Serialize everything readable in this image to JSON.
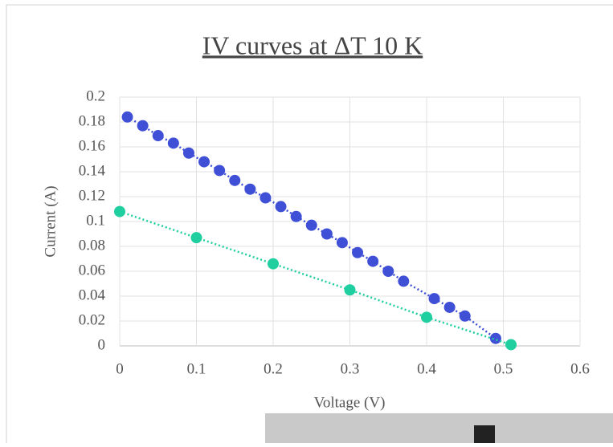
{
  "chart_data": {
    "type": "scatter",
    "title": "IV curves at ΔT 10 K",
    "x_label": "Voltage (V)",
    "y_label": "Current (A)",
    "xlim": [
      0,
      0.6
    ],
    "ylim": [
      0,
      0.2
    ],
    "xticks": [
      0,
      0.1,
      0.2,
      0.3,
      0.4,
      0.5,
      0.6
    ],
    "yticks": [
      0,
      0.02,
      0.04,
      0.06,
      0.08,
      0.1,
      0.12,
      0.14,
      0.16,
      0.18,
      0.2
    ],
    "grid": true,
    "series": [
      {
        "color": "#3f4fd6",
        "x": [
          0.01,
          0.03,
          0.05,
          0.07,
          0.09,
          0.11,
          0.13,
          0.15,
          0.17,
          0.19,
          0.21,
          0.23,
          0.25,
          0.27,
          0.29,
          0.31,
          0.33,
          0.35,
          0.37,
          0.41,
          0.43,
          0.45,
          0.49
        ],
        "values": [
          0.184,
          0.177,
          0.169,
          0.163,
          0.155,
          0.148,
          0.141,
          0.133,
          0.126,
          0.119,
          0.112,
          0.104,
          0.097,
          0.09,
          0.083,
          0.075,
          0.068,
          0.06,
          0.052,
          0.038,
          0.031,
          0.024,
          0.006
        ]
      },
      {
        "color": "#1fcf9f",
        "x": [
          0,
          0.1,
          0.2,
          0.3,
          0.4,
          0.51
        ],
        "values": [
          0.108,
          0.087,
          0.066,
          0.045,
          0.023,
          0.001
        ]
      }
    ]
  }
}
